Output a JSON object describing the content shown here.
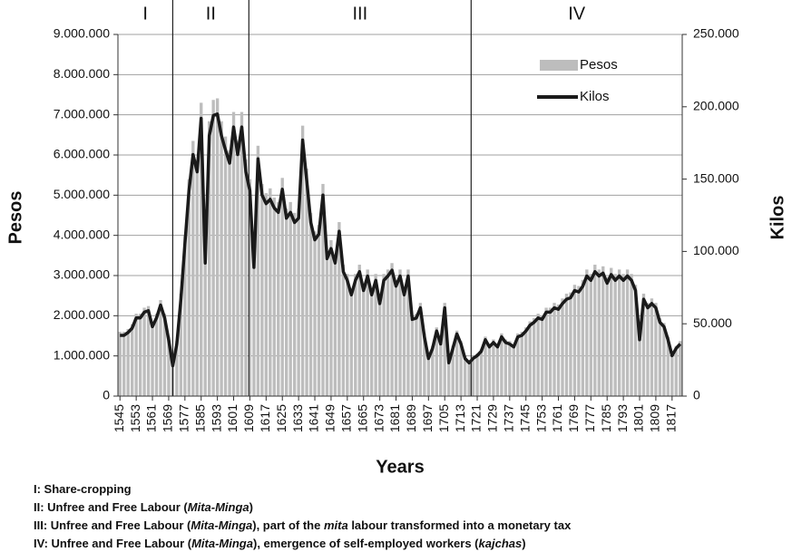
{
  "chart_data": {
    "type": "bar",
    "xlabel": "Years",
    "ylabel": "Pesos",
    "y2label": "Kilos",
    "legend": "upper right",
    "grid": true,
    "xlim": [
      1544,
      1822
    ],
    "xticks": [
      1545,
      1553,
      1561,
      1569,
      1577,
      1585,
      1593,
      1601,
      1609,
      1617,
      1625,
      1633,
      1641,
      1649,
      1657,
      1665,
      1673,
      1681,
      1689,
      1697,
      1705,
      1713,
      1721,
      1729,
      1737,
      1745,
      1753,
      1761,
      1769,
      1777,
      1785,
      1793,
      1801,
      1809,
      1817
    ],
    "ylim": [
      0,
      9000000
    ],
    "yticks": [
      0,
      {
        "value": 1000000,
        "label": "1.000.000"
      },
      {
        "value": 2000000,
        "label": "2.000.000"
      },
      {
        "value": 3000000,
        "label": "3.000.000"
      },
      {
        "value": 4000000,
        "label": "4.000.000"
      },
      {
        "value": 5000000,
        "label": "5.000.000"
      },
      {
        "value": 6000000,
        "label": "6.000.000"
      },
      {
        "value": 7000000,
        "label": "7.000.000"
      },
      {
        "value": 8000000,
        "label": "8.000.000"
      },
      {
        "value": 9000000,
        "label": "9.000.000"
      }
    ],
    "y2lim": [
      0,
      250000
    ],
    "y2ticks": [
      0,
      {
        "value": 50000,
        "label": "50.000"
      },
      {
        "value": 100000,
        "label": "100.000"
      },
      {
        "value": 150000,
        "label": "150.000"
      },
      {
        "value": 200000,
        "label": "200.000"
      },
      {
        "value": 250000,
        "label": "250.000"
      }
    ],
    "periods": [
      {
        "label": "I",
        "end": 1571
      },
      {
        "label": "II",
        "end": 1608.5
      },
      {
        "label": "III",
        "end": 1718
      },
      {
        "label": "IV"
      }
    ],
    "notes": [
      [
        "I: Share-cropping"
      ],
      [
        "II: Unfree and Free Labour (",
        "Mita-Minga",
        ")"
      ],
      [
        "III: Unfree and Free Labour (",
        "Mita-Minga",
        "), part of the ",
        "mita",
        " labour transformed into a monetary tax"
      ],
      [
        "IV: Unfree and Free Labour (",
        "Mita-Minga",
        "), emergence of self-employed workers (",
        "kajchas",
        ")"
      ]
    ],
    "x": [
      1545,
      1547,
      1549,
      1551,
      1553,
      1555,
      1557,
      1559,
      1561,
      1563,
      1565,
      1567,
      1569,
      1571,
      1573,
      1575,
      1577,
      1579,
      1581,
      1583,
      1585,
      1587,
      1589,
      1591,
      1593,
      1595,
      1597,
      1599,
      1601,
      1603,
      1605,
      1607,
      1609,
      1611,
      1613,
      1615,
      1617,
      1619,
      1621,
      1623,
      1625,
      1627,
      1629,
      1631,
      1633,
      1635,
      1637,
      1639,
      1641,
      1643,
      1645,
      1647,
      1649,
      1651,
      1653,
      1655,
      1657,
      1659,
      1661,
      1663,
      1665,
      1667,
      1669,
      1671,
      1673,
      1675,
      1677,
      1679,
      1681,
      1683,
      1685,
      1687,
      1689,
      1691,
      1693,
      1695,
      1697,
      1699,
      1701,
      1703,
      1705,
      1707,
      1709,
      1711,
      1713,
      1715,
      1717,
      1719,
      1721,
      1723,
      1725,
      1727,
      1729,
      1731,
      1733,
      1735,
      1737,
      1739,
      1741,
      1743,
      1745,
      1747,
      1749,
      1751,
      1753,
      1755,
      1757,
      1759,
      1761,
      1763,
      1765,
      1767,
      1769,
      1771,
      1773,
      1775,
      1777,
      1779,
      1781,
      1783,
      1785,
      1787,
      1789,
      1791,
      1793,
      1795,
      1797,
      1799,
      1801,
      1803,
      1805,
      1807,
      1809,
      1811,
      1813,
      1815,
      1817,
      1819,
      1821
    ],
    "series": [
      {
        "name": "Pesos",
        "type": "bar",
        "color": "#bdbdbd",
        "values": [
          1600000,
          1600000,
          1670000,
          1790000,
          2050000,
          2050000,
          2200000,
          2240000,
          1820000,
          2050000,
          2390000,
          2050000,
          1480000,
          800000,
          1370000,
          2550000,
          3990000,
          5400000,
          6350000,
          5890000,
          7300000,
          3500000,
          6840000,
          7370000,
          7410000,
          6840000,
          6460000,
          6120000,
          7070000,
          6350000,
          7070000,
          5890000,
          5400000,
          3380000,
          6230000,
          5280000,
          5050000,
          5170000,
          4940000,
          4830000,
          5430000,
          4670000,
          4830000,
          4560000,
          4670000,
          6730000,
          5660000,
          4560000,
          4100000,
          4260000,
          5280000,
          3610000,
          3880000,
          3500000,
          4330000,
          3270000,
          3040000,
          2660000,
          3040000,
          3270000,
          2770000,
          3150000,
          2660000,
          3040000,
          2430000,
          3040000,
          3150000,
          3310000,
          2890000,
          3150000,
          2660000,
          3150000,
          2010000,
          2050000,
          2320000,
          1560000,
          990000,
          1250000,
          1710000,
          1370000,
          2320000,
          870000,
          1250000,
          1630000,
          1370000,
          990000,
          870000,
          990000,
          1060000,
          1180000,
          1480000,
          1290000,
          1410000,
          1290000,
          1560000,
          1410000,
          1370000,
          1290000,
          1560000,
          1600000,
          1710000,
          1860000,
          1940000,
          2050000,
          2010000,
          2200000,
          2200000,
          2320000,
          2280000,
          2430000,
          2550000,
          2580000,
          2770000,
          2740000,
          2890000,
          3150000,
          3040000,
          3270000,
          3150000,
          3230000,
          2960000,
          3190000,
          3040000,
          3150000,
          3040000,
          3150000,
          3040000,
          2770000,
          1480000,
          2550000,
          2320000,
          2430000,
          2320000,
          1940000,
          1820000,
          1480000,
          1060000,
          1250000,
          1370000
        ]
      },
      {
        "name": "Kilos",
        "type": "line",
        "axis": "y2",
        "color": "#1a1a1a",
        "values": [
          42000,
          42000,
          44000,
          47000,
          54000,
          54000,
          58000,
          59000,
          48000,
          54000,
          63000,
          54000,
          39000,
          21000,
          36000,
          67000,
          105000,
          142000,
          167000,
          155000,
          192000,
          92000,
          180000,
          194000,
          195000,
          180000,
          170000,
          161000,
          186000,
          167000,
          186000,
          155000,
          142000,
          89000,
          164000,
          139000,
          133000,
          136000,
          130000,
          127000,
          143000,
          123000,
          127000,
          120000,
          123000,
          177000,
          149000,
          120000,
          108000,
          112000,
          139000,
          95000,
          102000,
          92000,
          114000,
          86000,
          80000,
          70000,
          80000,
          86000,
          73000,
          83000,
          70000,
          80000,
          64000,
          80000,
          83000,
          87000,
          76000,
          83000,
          70000,
          83000,
          53000,
          54000,
          61000,
          41000,
          26000,
          33000,
          45000,
          36000,
          61000,
          23000,
          33000,
          43000,
          36000,
          26000,
          23000,
          26000,
          28000,
          31000,
          39000,
          34000,
          37000,
          34000,
          41000,
          37000,
          36000,
          34000,
          41000,
          42000,
          45000,
          49000,
          51000,
          54000,
          53000,
          58000,
          58000,
          61000,
          60000,
          64000,
          67000,
          68000,
          73000,
          72000,
          76000,
          83000,
          80000,
          86000,
          83000,
          85000,
          78000,
          84000,
          80000,
          83000,
          80000,
          83000,
          80000,
          73000,
          39000,
          67000,
          61000,
          64000,
          61000,
          51000,
          48000,
          39000,
          28000,
          33000,
          36000
        ]
      }
    ]
  }
}
